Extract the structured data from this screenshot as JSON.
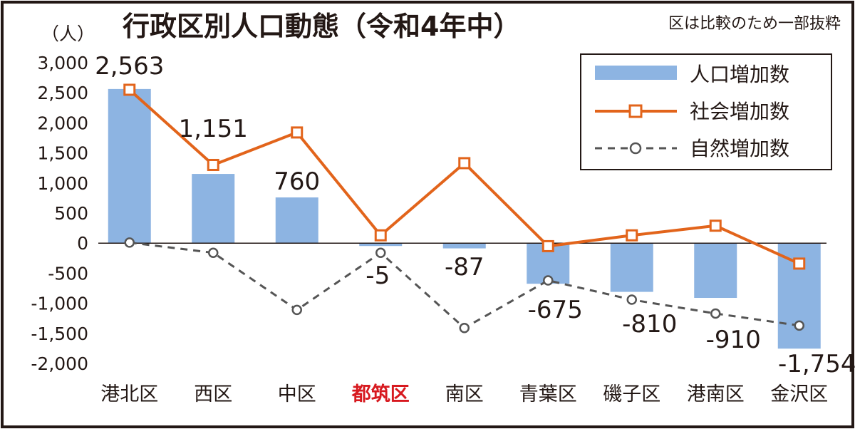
{
  "chart_data": {
    "type": "bar",
    "title": "行政区別人口動態（令和4年中）",
    "note": "区は比較のため一部抜粋",
    "ylabel": "（人）",
    "xlabel": "",
    "ylim": [
      -2000,
      3000
    ],
    "yticks": [
      3000,
      2500,
      2000,
      1500,
      1000,
      500,
      0,
      -500,
      -1000,
      -1500,
      -2000
    ],
    "ytick_labels": [
      "3,000",
      "2,500",
      "2,000",
      "1,500",
      "1,000",
      "500",
      "0",
      "-500",
      "-1,000",
      "-1,500",
      "-2,000"
    ],
    "grid": false,
    "legend_position": "top-right",
    "categories": [
      "港北区",
      "西区",
      "中区",
      "都筑区",
      "南区",
      "青葉区",
      "磯子区",
      "港南区",
      "金沢区"
    ],
    "highlight_category": "都筑区",
    "highlight_color": "#d7191f",
    "series": [
      {
        "name": "人口増加数",
        "kind": "bar",
        "color": "#8db4e2",
        "values": [
          2563,
          1151,
          760,
          -5,
          -87,
          -675,
          -810,
          -910,
          -1754
        ],
        "labels": [
          "2,563",
          "1,151",
          "760",
          "-5",
          "-87",
          "-675",
          "-810",
          "-910",
          "-1,754"
        ]
      },
      {
        "name": "社会増加数",
        "kind": "line",
        "color": "#e2641b",
        "marker": "square",
        "values": [
          2550,
          1300,
          1840,
          130,
          1330,
          -50,
          130,
          290,
          -340
        ]
      },
      {
        "name": "自然増加数",
        "kind": "dashed-line",
        "color": "#555555",
        "marker": "circle",
        "values": [
          10,
          -160,
          -1110,
          -160,
          -1410,
          -620,
          -940,
          -1170,
          -1370
        ]
      }
    ]
  }
}
